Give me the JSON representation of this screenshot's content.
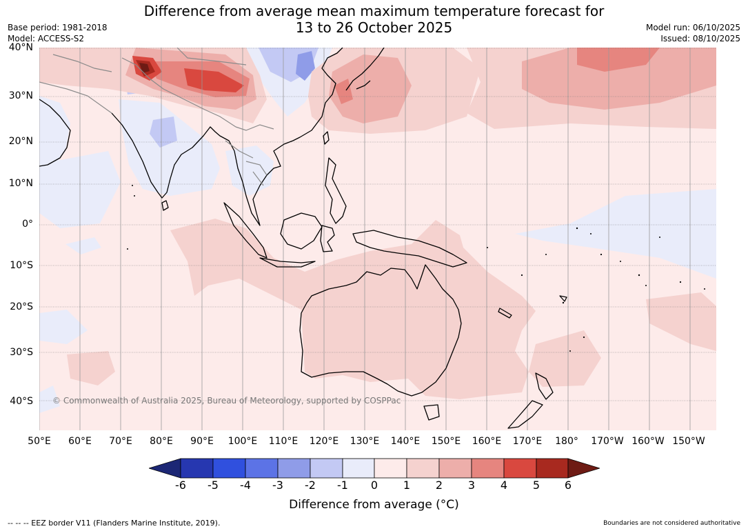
{
  "title": {
    "line1": "Difference from average mean maximum temperature forecast for",
    "line2": "13 to 26 October 2025"
  },
  "meta": {
    "base_period": "Base period: 1981-2018",
    "model": "Model: ACCESS-S2",
    "model_run": "Model run: 06/10/2025",
    "issued": "Issued: 08/10/2025"
  },
  "map": {
    "lon_labels": [
      "50°E",
      "60°E",
      "70°E",
      "80°E",
      "90°E",
      "100°E",
      "110°E",
      "120°E",
      "130°E",
      "140°E",
      "150°E",
      "160°E",
      "170°E",
      "180°",
      "170°W",
      "160°W",
      "150°W"
    ],
    "lat_labels": [
      "40°N",
      "30°N",
      "20°N",
      "10°N",
      "0°",
      "10°S",
      "20°S",
      "30°S",
      "40°S"
    ],
    "copyright": "© Commonwealth of Australia 2025, Bureau of Meteorology, supported by COSPPac",
    "colors": {
      "band_0_1": "#fdebea",
      "band_1_2": "#f5d2cf",
      "band_2_3": "#edaeaa",
      "band_3_4": "#e6857f",
      "band_4_5": "#d9483f",
      "band_5_6": "#a8291f",
      "band_gt6": "#6e1b14",
      "band_m1_0": "#e9ecfa",
      "band_m2_m1": "#c3c9f4",
      "band_m3_m2": "#8f9ce8",
      "coast": "#000000",
      "border": "#8a8a8a"
    }
  },
  "colorbar": {
    "colors": [
      "#1c2775",
      "#2637b0",
      "#3050de",
      "#5c73e6",
      "#8f9ce8",
      "#c3c9f4",
      "#e9ecfa",
      "#fdebea",
      "#f5d2cf",
      "#edaeaa",
      "#e6857f",
      "#d9483f",
      "#a8291f",
      "#6e1b14"
    ],
    "ticks": [
      "-6",
      "-5",
      "-4",
      "-3",
      "-2",
      "-1",
      "0",
      "1",
      "2",
      "3",
      "4",
      "5",
      "6"
    ],
    "label": "Difference from average (°C)"
  },
  "footer": {
    "eez": "--  --  -- EEZ border V11 (Flanders Marine Institute, 2019).",
    "boundaries": "Boundaries are not considered authoritative"
  }
}
